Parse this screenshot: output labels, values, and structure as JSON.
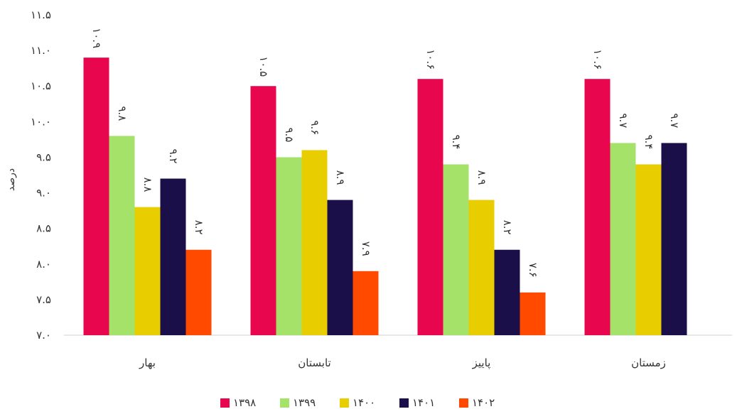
{
  "chart_data": {
    "type": "bar",
    "title": "",
    "xlabel": "",
    "ylabel": "درصد",
    "ylim": [
      7.0,
      11.5
    ],
    "yticks": [
      7.0,
      7.5,
      8.0,
      8.5,
      9.0,
      9.5,
      10.0,
      10.5,
      11.0,
      11.5
    ],
    "ytick_labels": [
      "۷.۰",
      "۷.۵",
      "۸.۰",
      "۸.۵",
      "۹.۰",
      "۹.۵",
      "۱۰.۰",
      "۱۰.۵",
      "۱۱.۰",
      "۱۱.۵"
    ],
    "categories": [
      "بهار",
      "تابستان",
      "پاییز",
      "زمستان"
    ],
    "grid": false,
    "legend_position": "bottom",
    "series": [
      {
        "name": "۱۳۹۸",
        "color": "#E8074F",
        "values": [
          10.9,
          10.5,
          10.6,
          10.6
        ],
        "labels": [
          "۱۰.۹",
          "۱۰.۵",
          "۱۰.۶",
          "۱۰.۶"
        ]
      },
      {
        "name": "۱۳۹۹",
        "color": "#A5E26A",
        "values": [
          9.8,
          9.5,
          9.4,
          9.7
        ],
        "labels": [
          "۹.۸",
          "۹.۵",
          "۹.۴",
          "۹.۷"
        ]
      },
      {
        "name": "۱۴۰۰",
        "color": "#E8CE00",
        "values": [
          8.8,
          9.6,
          8.9,
          9.4
        ],
        "labels": [
          "۸.۸",
          "۹.۶",
          "۸.۹",
          "۹.۴"
        ]
      },
      {
        "name": "۱۴۰۱",
        "color": "#1B0F4A",
        "values": [
          9.2,
          8.9,
          8.2,
          9.7
        ],
        "labels": [
          "۹.۲",
          "۸.۹",
          "۸.۲",
          "۹.۷"
        ]
      },
      {
        "name": "۱۴۰۲",
        "color": "#FF4A00",
        "values": [
          8.2,
          7.9,
          7.6,
          null
        ],
        "labels": [
          "۸.۲",
          "۷.۹",
          "۷.۶",
          null
        ]
      }
    ]
  }
}
